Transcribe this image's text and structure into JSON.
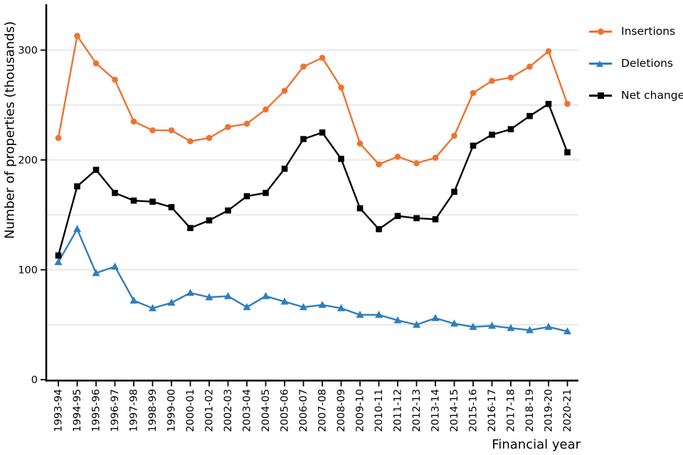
{
  "figure": {
    "ylabel": "Number of properties (thousands)",
    "xlabel": "Financial year"
  },
  "legend": {
    "position": "top-right",
    "items": [
      {
        "label": "Insertions",
        "color": "#ED7332",
        "marker": "circle"
      },
      {
        "label": "Deletions",
        "color": "#2F7EBC",
        "marker": "triangle"
      },
      {
        "label": "Net change",
        "color": "#000000",
        "marker": "square"
      }
    ]
  },
  "colors": {
    "grid": "#DEDEDE",
    "axis": "#000000",
    "background": "#FFFFFF"
  },
  "chart_data": {
    "type": "line",
    "title": "",
    "xlabel": "Financial year",
    "ylabel": "Number of properties (thousands)",
    "grid": true,
    "legend_position": "top-right",
    "ylim": [
      0,
      342
    ],
    "yticks": [
      0,
      100,
      200,
      300
    ],
    "gridline_values": [
      50,
      100,
      150,
      200,
      250,
      300
    ],
    "categories": [
      "1993-94",
      "1994-95",
      "1995-96",
      "1996-97",
      "1997-98",
      "1998-99",
      "1999-00",
      "2000-01",
      "2001-02",
      "2002-03",
      "2003-04",
      "2004-05",
      "2005-06",
      "2006-07",
      "2007-08",
      "2008-09",
      "2009-10",
      "2010-11",
      "2011-12",
      "2012-13",
      "2013-14",
      "2014-15",
      "2015-16",
      "2016-17",
      "2017-18",
      "2018-19",
      "2019-20",
      "2020-21"
    ],
    "series": [
      {
        "name": "Insertions",
        "color": "#ED7332",
        "marker": "circle",
        "values": [
          220,
          313,
          288,
          273,
          235,
          227,
          227,
          217,
          220,
          230,
          233,
          246,
          263,
          285,
          293,
          266,
          215,
          196,
          203,
          197,
          202,
          222,
          261,
          272,
          275,
          285,
          299,
          251
        ]
      },
      {
        "name": "Deletions",
        "color": "#2F7EBC",
        "marker": "triangle",
        "values": [
          107,
          137,
          97,
          103,
          72,
          65,
          70,
          79,
          75,
          76,
          66,
          76,
          71,
          66,
          68,
          65,
          59,
          59,
          54,
          50,
          56,
          51,
          48,
          49,
          47,
          45,
          48,
          44
        ]
      },
      {
        "name": "Net change",
        "color": "#000000",
        "marker": "square",
        "values": [
          113,
          176,
          191,
          170,
          163,
          162,
          157,
          138,
          145,
          154,
          167,
          170,
          192,
          219,
          225,
          201,
          156,
          137,
          149,
          147,
          146,
          171,
          213,
          223,
          228,
          240,
          251,
          207
        ]
      }
    ]
  }
}
